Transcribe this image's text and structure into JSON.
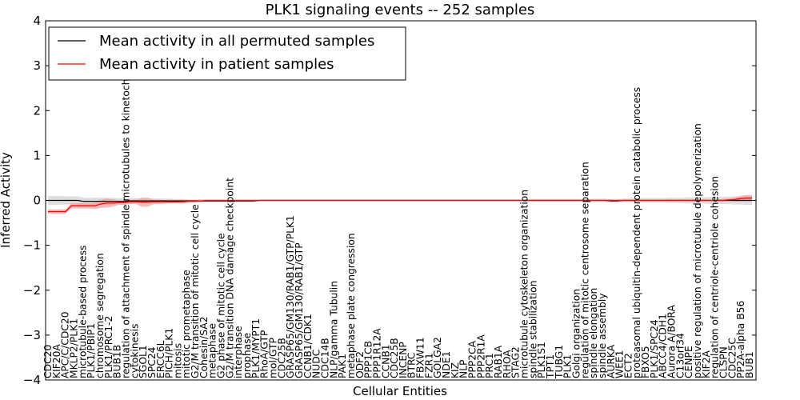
{
  "chart_data": {
    "type": "line",
    "title": "PLK1 signaling events -- 252 samples",
    "xlabel": "Cellular Entities",
    "ylabel": "Inferred Activity",
    "ylim": [
      -4,
      4
    ],
    "yticks": [
      "−4",
      "−3",
      "−2",
      "−1",
      "0",
      "1",
      "2",
      "3",
      "4"
    ],
    "legend_position": "upper-left",
    "series": [
      {
        "name": "Mean activity in all permuted samples",
        "color": "#000000",
        "band_color": "#c8c8c8",
        "values": [
          0.0,
          0.0,
          0.0,
          0.0,
          0.0,
          0.0,
          -0.02,
          -0.02,
          -0.02,
          -0.02,
          -0.02,
          -0.02,
          -0.02,
          -0.02,
          -0.01,
          -0.01,
          -0.01,
          -0.01,
          -0.01,
          -0.01,
          -0.01,
          -0.01,
          -0.01,
          -0.01,
          -0.01,
          -0.01,
          -0.01,
          -0.01,
          -0.01,
          -0.01,
          -0.01,
          -0.01,
          -0.01,
          -0.01,
          -0.01,
          -0.01,
          0.0,
          0.0,
          0.0,
          0.0,
          0.0,
          0.0,
          0.0,
          0.0,
          0.0,
          0.0,
          0.0,
          0.0,
          0.0,
          0.0,
          0.0,
          0.0,
          0.0,
          0.0,
          0.0,
          0.0,
          0.0,
          0.0,
          0.0,
          0.0,
          0.0,
          0.0,
          0.0,
          0.0,
          0.0,
          0.0,
          0.0,
          0.0,
          0.0,
          0.0,
          0.0,
          0.0,
          0.0,
          0.0,
          0.0,
          0.0,
          0.0,
          0.0,
          0.0,
          0.0,
          0.0,
          0.0,
          0.0,
          0.0,
          0.0,
          0.0,
          0.0,
          0.0,
          0.0,
          0.0,
          0.0,
          0.0,
          0.0,
          0.0,
          0.0,
          0.0,
          -0.01,
          -0.01,
          0.0,
          0.0,
          0.0,
          0.0,
          0.0,
          0.0,
          0.0,
          0.0,
          0.0,
          0.0,
          0.0,
          0.0,
          0.0,
          0.0,
          0.0,
          0.0,
          0.0,
          0.0,
          0.0,
          0.0,
          0.0,
          0.0,
          0.0
        ],
        "band_halfwidth": [
          0.1,
          0.1,
          0.1,
          0.09,
          0.09,
          0.09,
          0.08,
          0.08,
          0.08,
          0.08,
          0.08,
          0.08,
          0.07,
          0.07,
          0.06,
          0.06,
          0.06,
          0.06,
          0.06,
          0.05,
          0.05,
          0.05,
          0.04,
          0.04,
          0.03,
          0.03,
          0.03,
          0.03,
          0.03,
          0.03,
          0.03,
          0.03,
          0.03,
          0.03,
          0.03,
          0.03,
          0.02,
          0.02,
          0.02,
          0.02,
          0.02,
          0.02,
          0.02,
          0.02,
          0.02,
          0.02,
          0.02,
          0.02,
          0.02,
          0.02,
          0.02,
          0.02,
          0.02,
          0.02,
          0.02,
          0.02,
          0.02,
          0.02,
          0.02,
          0.02,
          0.02,
          0.02,
          0.02,
          0.02,
          0.02,
          0.02,
          0.02,
          0.02,
          0.02,
          0.02,
          0.02,
          0.02,
          0.02,
          0.02,
          0.02,
          0.02,
          0.02,
          0.02,
          0.02,
          0.02,
          0.02,
          0.02,
          0.03,
          0.03,
          0.03,
          0.03,
          0.03,
          0.03,
          0.03,
          0.03,
          0.03,
          0.03,
          0.03,
          0.04,
          0.04,
          0.04,
          0.04,
          0.04,
          0.04,
          0.04,
          0.05,
          0.05,
          0.05,
          0.05,
          0.05,
          0.05,
          0.06,
          0.06,
          0.06,
          0.07,
          0.07,
          0.07,
          0.07,
          0.08,
          0.08,
          0.08,
          0.08,
          0.09,
          0.09,
          0.1,
          0.1
        ]
      },
      {
        "name": "Mean activity in patient samples",
        "color": "#ff0000",
        "band_color": "#f4a0a0",
        "values": [
          -0.25,
          -0.25,
          -0.25,
          -0.25,
          -0.12,
          -0.12,
          -0.12,
          -0.12,
          -0.12,
          -0.08,
          -0.06,
          -0.06,
          -0.05,
          -0.05,
          -0.03,
          -0.03,
          -0.04,
          -0.04,
          -0.03,
          -0.03,
          -0.03,
          -0.03,
          -0.03,
          -0.03,
          -0.02,
          -0.02,
          -0.01,
          0.0,
          0.0,
          0.0,
          0.0,
          0.0,
          0.0,
          0.0,
          0.0,
          0.0,
          0.0,
          0.0,
          0.0,
          0.0,
          0.0,
          0.0,
          0.0,
          0.0,
          0.0,
          0.0,
          0.0,
          0.0,
          0.0,
          0.0,
          0.0,
          0.0,
          0.0,
          0.0,
          0.0,
          0.0,
          0.0,
          0.0,
          0.0,
          0.0,
          0.0,
          0.0,
          0.0,
          0.0,
          0.0,
          0.0,
          0.0,
          0.0,
          0.0,
          0.0,
          0.0,
          0.0,
          0.0,
          0.0,
          0.0,
          0.0,
          0.0,
          0.0,
          0.0,
          0.0,
          0.0,
          0.0,
          0.0,
          0.0,
          0.0,
          0.0,
          0.0,
          0.0,
          0.0,
          0.0,
          0.0,
          0.0,
          0.0,
          0.0,
          0.0,
          0.0,
          0.0,
          0.0,
          0.0,
          0.0,
          0.0,
          0.0,
          0.0,
          0.0,
          0.0,
          0.0,
          0.0,
          0.0,
          0.0,
          0.0,
          0.0,
          0.0,
          0.0,
          0.0,
          0.0,
          0.0,
          0.01,
          0.02,
          0.04,
          0.05,
          0.05
        ],
        "band_halfwidth": [
          0.05,
          0.05,
          0.05,
          0.05,
          0.06,
          0.06,
          0.06,
          0.06,
          0.07,
          0.09,
          0.1,
          0.08,
          0.05,
          0.05,
          0.05,
          0.05,
          0.1,
          0.1,
          0.05,
          0.05,
          0.04,
          0.04,
          0.04,
          0.04,
          0.03,
          0.03,
          0.03,
          0.01,
          0.01,
          0.01,
          0.01,
          0.01,
          0.01,
          0.01,
          0.01,
          0.01,
          0.01,
          0.01,
          0.01,
          0.01,
          0.01,
          0.01,
          0.01,
          0.01,
          0.01,
          0.01,
          0.01,
          0.01,
          0.01,
          0.01,
          0.01,
          0.01,
          0.01,
          0.01,
          0.01,
          0.01,
          0.01,
          0.01,
          0.01,
          0.01,
          0.01,
          0.01,
          0.01,
          0.01,
          0.01,
          0.01,
          0.01,
          0.01,
          0.01,
          0.01,
          0.01,
          0.01,
          0.01,
          0.01,
          0.01,
          0.01,
          0.01,
          0.01,
          0.01,
          0.01,
          0.01,
          0.01,
          0.01,
          0.01,
          0.01,
          0.01,
          0.01,
          0.01,
          0.01,
          0.01,
          0.01,
          0.01,
          0.01,
          0.01,
          0.01,
          0.02,
          0.02,
          0.02,
          0.02,
          0.02,
          0.02,
          0.02,
          0.02,
          0.02,
          0.02,
          0.02,
          0.02,
          0.02,
          0.02,
          0.02,
          0.02,
          0.02,
          0.02,
          0.02,
          0.02,
          0.03,
          0.03,
          0.04,
          0.06,
          0.07,
          0.07
        ]
      }
    ],
    "entities": [
      "CDC20",
      "KIF20A",
      "APC/C/CDC20",
      "MKLP2/PLK1",
      "microtubule-based process",
      "PLK1/PBIP1",
      "chromosome segregation",
      "PLK1/PRC1-2",
      "BUB1B",
      "regulation of attachment of spindle microtubules to kinetochore",
      "cytokinesis",
      "SGOL1",
      "SPC24",
      "ERCC6L",
      "PICH/PLK1",
      "mitosis",
      "mitotic prometaphase",
      "G2/M transition of mitotic cell cycle",
      "Cohesin/SA2",
      "metaphase",
      "G2 phase of mitotic cell cycle",
      "G2/M transition DNA damage checkpoint",
      "interphase",
      "prophase",
      "PLK1/MYPT1",
      "RhoA/GTP",
      "mol/GTP",
      "CDC25B",
      "GRASP65/GM130/RAB1/GTP/PLK1",
      "GRASP65/GM130/RAB1/GTP",
      "CCNB1/CDK1",
      "NUDC",
      "CDC14B",
      "NLP/gamma Tubulin",
      "PAK1",
      "metaphase plate congression",
      "ODF2",
      "PPP1CB",
      "PPP1R12A",
      "CCNB1",
      "CDC25B",
      "INCENP",
      "BTRC",
      "FBXW11",
      "FZR1",
      "GOLGA2",
      "NDE1",
      "KIZ",
      "NLP",
      "PPP2CA",
      "PPP2R1A",
      "PRC1",
      "RAB1A",
      "RHOA",
      "STAG2",
      "microtubule cytoskeleton organization",
      "spindle stabilization",
      "PLK1S1",
      "TPT1",
      "TUBG1",
      "PLK1",
      "Golgi organization",
      "regulation of mitotic centrosome separation",
      "spindle elongation",
      "spindle assembly",
      "AURKA",
      "WEE1",
      "ECT2",
      "proteasomal ubiquitin-dependent protein catabolic process",
      "FBXO5",
      "PLK1/SPC24",
      "ABCC4/CDH1",
      "Aurora A/BORA",
      "C13orf34",
      "CENPE",
      "positive regulation of microtubule depolymerization",
      "KIF2A",
      "regulation of centriole-centriole cohesion",
      "CLSPN",
      "CDC25C",
      "PP2A-alpha B56",
      "BUB1"
    ]
  }
}
